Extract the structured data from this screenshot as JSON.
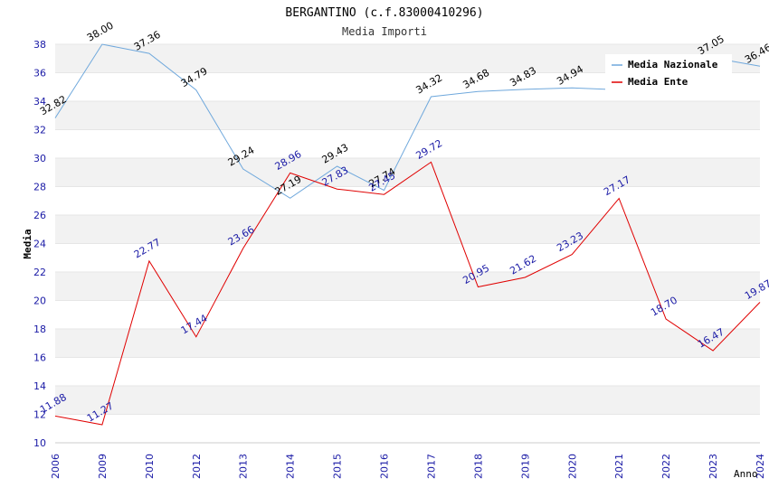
{
  "chart_data": {
    "type": "line",
    "title": "BERGANTINO (c.f.83000410296)",
    "subtitle": "Media Importi",
    "xlabel": "Anno",
    "ylabel": "Media",
    "categories": [
      "2006",
      "2009",
      "2010",
      "2012",
      "2013",
      "2014",
      "2015",
      "2016",
      "2017",
      "2018",
      "2019",
      "2020",
      "2021",
      "2022",
      "2023",
      "2024"
    ],
    "ylim": [
      10,
      38
    ],
    "yticks": [
      10,
      12,
      14,
      16,
      18,
      20,
      22,
      24,
      26,
      28,
      30,
      32,
      34,
      36,
      38
    ],
    "legend_position": "top-right",
    "series": [
      {
        "name": "Media Nazionale",
        "color": "#6fa8dc",
        "label_color": "#000000",
        "values": [
          32.82,
          38.0,
          37.36,
          34.79,
          29.24,
          27.19,
          29.43,
          27.74,
          34.32,
          34.68,
          34.83,
          34.94,
          34.8,
          36.8,
          37.05,
          36.46
        ],
        "labels": [
          "32.82",
          "38.00",
          "37.36",
          "34.79",
          "29.24",
          "27.19",
          "29.43",
          "27.74",
          "34.32",
          "34.68",
          "34.83",
          "34.94",
          "",
          "",
          "37.05",
          "36.46"
        ]
      },
      {
        "name": "Media Ente",
        "color": "#e00000",
        "label_color": "#1a1aa6",
        "values": [
          11.88,
          11.27,
          22.77,
          17.44,
          23.66,
          28.96,
          27.83,
          27.45,
          29.72,
          20.95,
          21.62,
          23.23,
          27.17,
          18.7,
          16.47,
          19.87
        ],
        "labels": [
          "11.88",
          "11.27",
          "22.77",
          "17.44",
          "23.66",
          "28.96",
          "27.83",
          "27.45",
          "29.72",
          "20.95",
          "21.62",
          "23.23",
          "27.17",
          "18.70",
          "16.47",
          "19.87"
        ]
      }
    ]
  }
}
